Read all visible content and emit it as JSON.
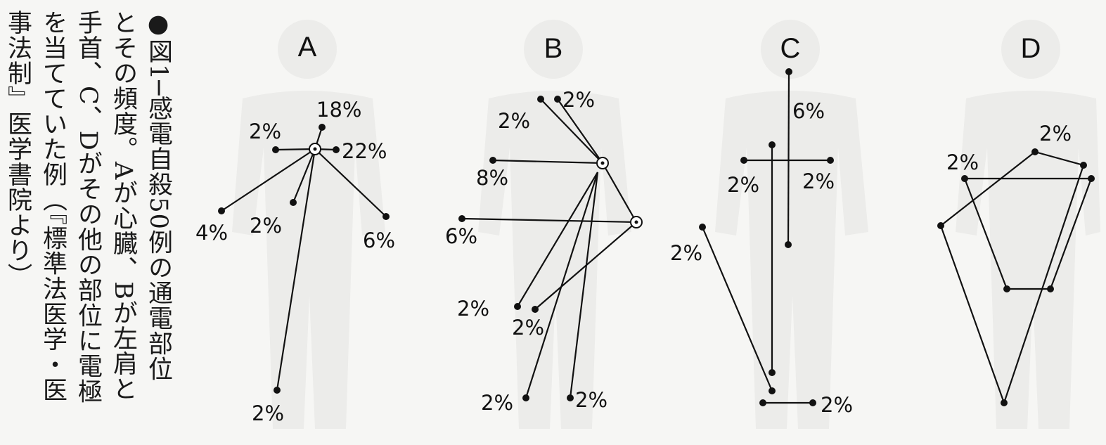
{
  "caption": {
    "columns": [
      "●図1─感電自殺50例の通電部位",
      "とその頻度。Aが心臓、Bが左肩と",
      "手首、C、Dがその他の部位に電極",
      "を当てていた例（『標準法医学・医",
      "事法制』医学書院より）"
    ]
  },
  "panels": [
    {
      "id": "A",
      "title": "A",
      "points": [
        {
          "id": "a_top",
          "label": "18%"
        },
        {
          "id": "a_l",
          "label": "2%"
        },
        {
          "id": "a_r",
          "label": "22%"
        },
        {
          "id": "a_fl",
          "label": "4%"
        },
        {
          "id": "a_c",
          "label": "2%"
        },
        {
          "id": "a_fr",
          "label": "6%"
        },
        {
          "id": "a_bot",
          "label": "2%"
        }
      ]
    },
    {
      "id": "B",
      "title": "B",
      "points": [
        {
          "id": "b_t1",
          "label": "2%"
        },
        {
          "id": "b_t2",
          "label": "2%"
        },
        {
          "id": "b_l1",
          "label": "8%"
        },
        {
          "id": "b_l2",
          "label": "6%"
        },
        {
          "id": "b_m1",
          "label": "2%"
        },
        {
          "id": "b_m2",
          "label": "2%"
        },
        {
          "id": "b_b1",
          "label": "2%"
        },
        {
          "id": "b_b2",
          "label": "2%"
        }
      ]
    },
    {
      "id": "C",
      "title": "C",
      "points": [
        {
          "id": "c_top",
          "label": "6%"
        },
        {
          "id": "c_l",
          "label": "2%"
        },
        {
          "id": "c_r",
          "label": "2%"
        },
        {
          "id": "c_far",
          "label": "2%"
        },
        {
          "id": "c_bot",
          "label": "2%"
        }
      ]
    },
    {
      "id": "D",
      "title": "D",
      "points": [
        {
          "id": "d_top",
          "label": "2%"
        },
        {
          "id": "d_l",
          "label": "2%"
        }
      ]
    }
  ]
}
